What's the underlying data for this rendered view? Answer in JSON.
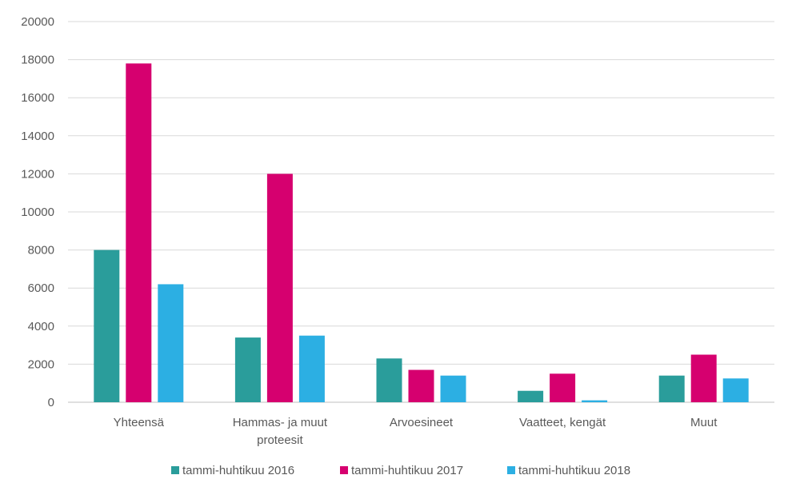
{
  "chart_data": {
    "type": "bar",
    "categories": [
      [
        "Yhteensä"
      ],
      [
        "Hammas- ja muut",
        "proteesit"
      ],
      [
        "Arvoesineet"
      ],
      [
        "Vaatteet, kengät"
      ],
      [
        "Muut"
      ]
    ],
    "series": [
      {
        "name": "tammi-huhtikuu 2016",
        "color": "#2a9d9b",
        "values": [
          8000,
          3400,
          2300,
          600,
          1400
        ]
      },
      {
        "name": "tammi-huhtikuu 2017",
        "color": "#d6006f",
        "values": [
          17800,
          12000,
          1700,
          1500,
          2500
        ]
      },
      {
        "name": "tammi-huhtikuu 2018",
        "color": "#2cafe3",
        "values": [
          6200,
          3500,
          1400,
          100,
          1250
        ]
      }
    ],
    "ylim": [
      0,
      20000
    ],
    "yticks": [
      "0",
      "2000",
      "4000",
      "6000",
      "8000",
      "10000",
      "12000",
      "14000",
      "16000",
      "18000",
      "20000"
    ],
    "grid": true,
    "legend_position": "bottom"
  }
}
